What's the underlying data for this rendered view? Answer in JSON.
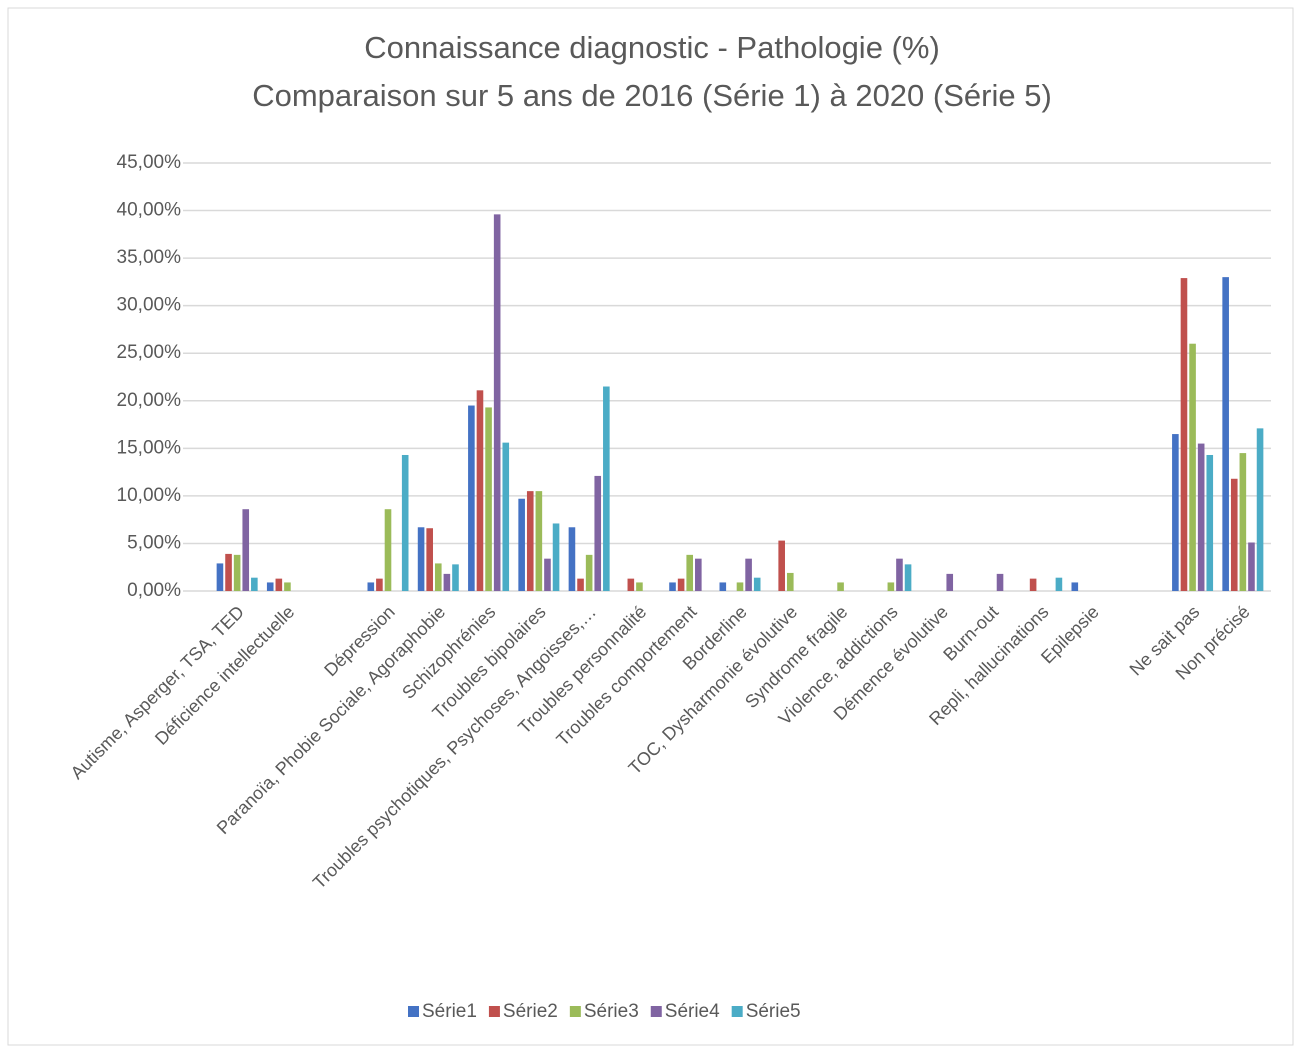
{
  "chart_data": {
    "type": "bar",
    "title": "Connaissance diagnostic - Pathologie (%)",
    "subtitle": "Comparaison sur 5 ans de 2016 (Série 1) à 2020 (Série 5)",
    "categories": [
      "Autisme, Asperger, TSA, TED",
      "Déficience intellectuelle",
      null,
      "Dépression",
      "Paranoïa, Phobie Sociale, Agoraphobie",
      "Schizophrénies",
      "Troubles bipolaires",
      "Troubles psychotiques, Psychoses, Angoisses,…",
      "Troubles personnalité",
      "Troubles comportement",
      "Borderline",
      "TOC, Dysharmonie évolutive",
      "Syndrome fragile",
      "Violence, addictions",
      "Démence évolutive",
      "Burn-out",
      "Repli, hallucinations",
      "Epilepsie",
      null,
      "Ne sait pas",
      "Non précisé"
    ],
    "series": [
      {
        "name": "Série1",
        "color": "#4472c4",
        "values": [
          2.9,
          0.9,
          null,
          0.9,
          6.7,
          19.5,
          9.7,
          6.7,
          0,
          0.9,
          0.9,
          0,
          0,
          0,
          0,
          0,
          0,
          0.9,
          null,
          16.5,
          33.0
        ]
      },
      {
        "name": "Série2",
        "color": "#c0504d",
        "values": [
          3.9,
          1.3,
          null,
          1.3,
          6.6,
          21.1,
          10.5,
          1.3,
          1.3,
          1.3,
          0,
          5.3,
          0,
          0,
          0,
          0,
          1.3,
          0,
          null,
          32.9,
          11.8
        ]
      },
      {
        "name": "Série3",
        "color": "#9bbb59",
        "values": [
          3.8,
          0.9,
          null,
          8.6,
          2.9,
          19.3,
          10.5,
          3.8,
          0.9,
          3.8,
          0.9,
          1.9,
          0.9,
          0.9,
          0,
          0,
          0,
          0,
          null,
          26.0,
          14.5
        ]
      },
      {
        "name": "Série4",
        "color": "#8064a2",
        "values": [
          8.6,
          0,
          null,
          0,
          1.8,
          39.6,
          3.4,
          12.1,
          0,
          3.4,
          3.4,
          0,
          0,
          3.4,
          1.8,
          1.8,
          0,
          0,
          null,
          15.5,
          5.1
        ]
      },
      {
        "name": "Série5",
        "color": "#4bacc6",
        "values": [
          1.4,
          0,
          null,
          14.3,
          2.8,
          15.6,
          7.1,
          21.5,
          0,
          0,
          1.4,
          0,
          0,
          2.8,
          0,
          0,
          1.4,
          0,
          null,
          14.3,
          17.1
        ]
      }
    ],
    "ylim": [
      0,
      45
    ],
    "yticks": [
      {
        "value": 0,
        "label": "0,00%"
      },
      {
        "value": 5,
        "label": "5,00%"
      },
      {
        "value": 10,
        "label": "10,00%"
      },
      {
        "value": 15,
        "label": "15,00%"
      },
      {
        "value": 20,
        "label": "20,00%"
      },
      {
        "value": 25,
        "label": "25,00%"
      },
      {
        "value": 30,
        "label": "30,00%"
      },
      {
        "value": 35,
        "label": "35,00%"
      },
      {
        "value": 40,
        "label": "40,00%"
      },
      {
        "value": 45,
        "label": "45,00%"
      }
    ],
    "grid": true,
    "legend": "bottom"
  }
}
